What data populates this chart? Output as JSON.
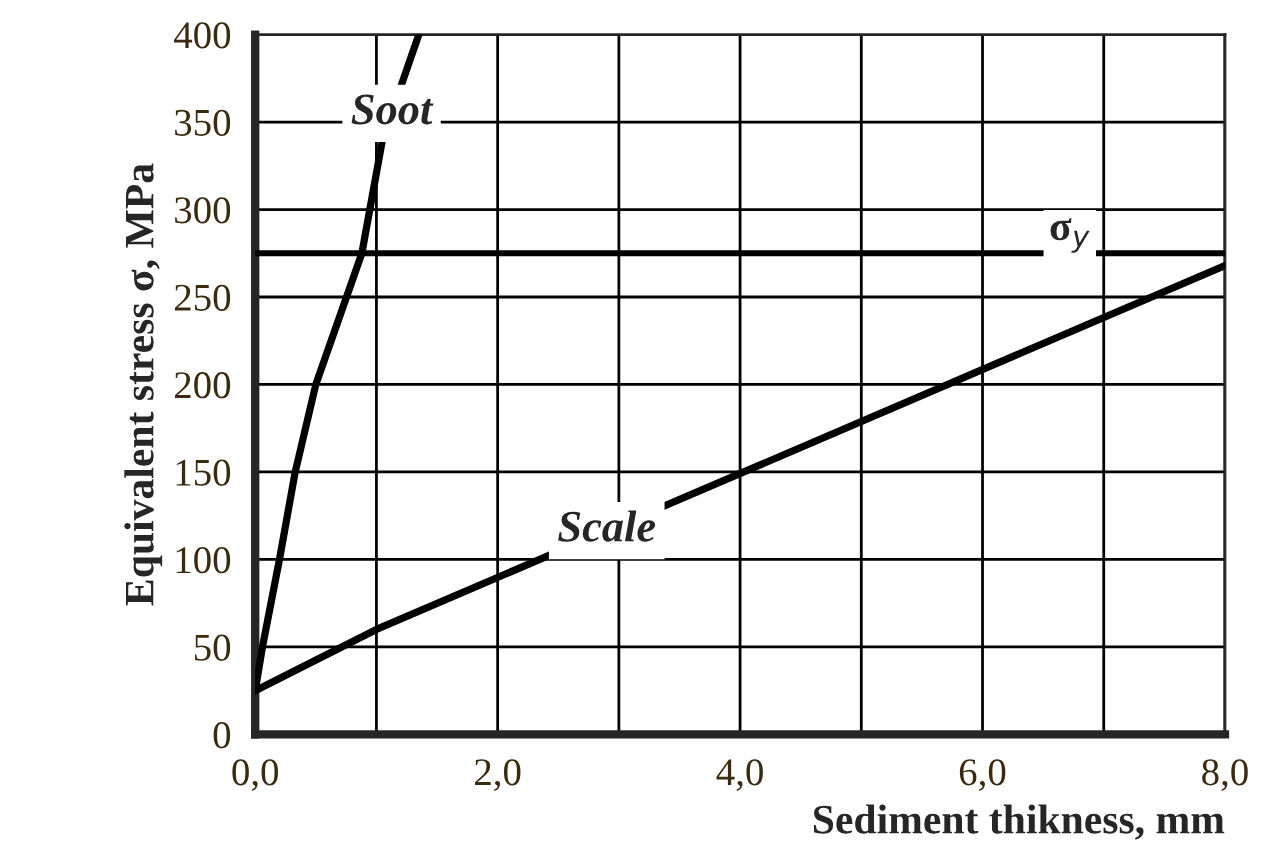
{
  "chart_data": {
    "type": "line",
    "xlabel": "Sediment thikness, mm",
    "ylabel": "Equivalent stress σ, MPa",
    "series": [
      {
        "color": "#000000",
        "x": [
          0,
          0.06,
          0.2,
          0.33,
          0.5,
          0.88,
          1.05,
          1.35
        ],
        "values": [
          25,
          50,
          100,
          150,
          200,
          275,
          340,
          400
        ]
      },
      {
        "color": "#000000",
        "x": [
          0,
          1,
          8
        ],
        "values": [
          25,
          60,
          268
        ]
      }
    ],
    "annotations": [
      {
        "text": "Soot",
        "x": 1.125,
        "y": 355
      },
      {
        "text": "Scale",
        "x": 2.9,
        "y": 116.5
      }
    ],
    "ref_lines": [
      {
        "axis": "y",
        "value": 275,
        "label": "σ$_{y}$",
        "color": "#000000"
      }
    ],
    "xlim": [
      0,
      8
    ],
    "xticks": [
      {
        "value": 0,
        "label": "0,0"
      },
      {
        "value": 1,
        "label": null
      },
      {
        "value": 2,
        "label": "2,0"
      },
      {
        "value": 3,
        "label": null
      },
      {
        "value": 4,
        "label": "4,0"
      },
      {
        "value": 5,
        "label": null
      },
      {
        "value": 6,
        "label": "6,0"
      },
      {
        "value": 7,
        "label": null
      },
      {
        "value": 8,
        "label": "8,0"
      }
    ],
    "ylim": [
      0,
      400
    ],
    "yticks": [
      0,
      50,
      100,
      150,
      200,
      250,
      300,
      350,
      400
    ],
    "grid": true,
    "marker": "none",
    "line_style": "solid"
  }
}
